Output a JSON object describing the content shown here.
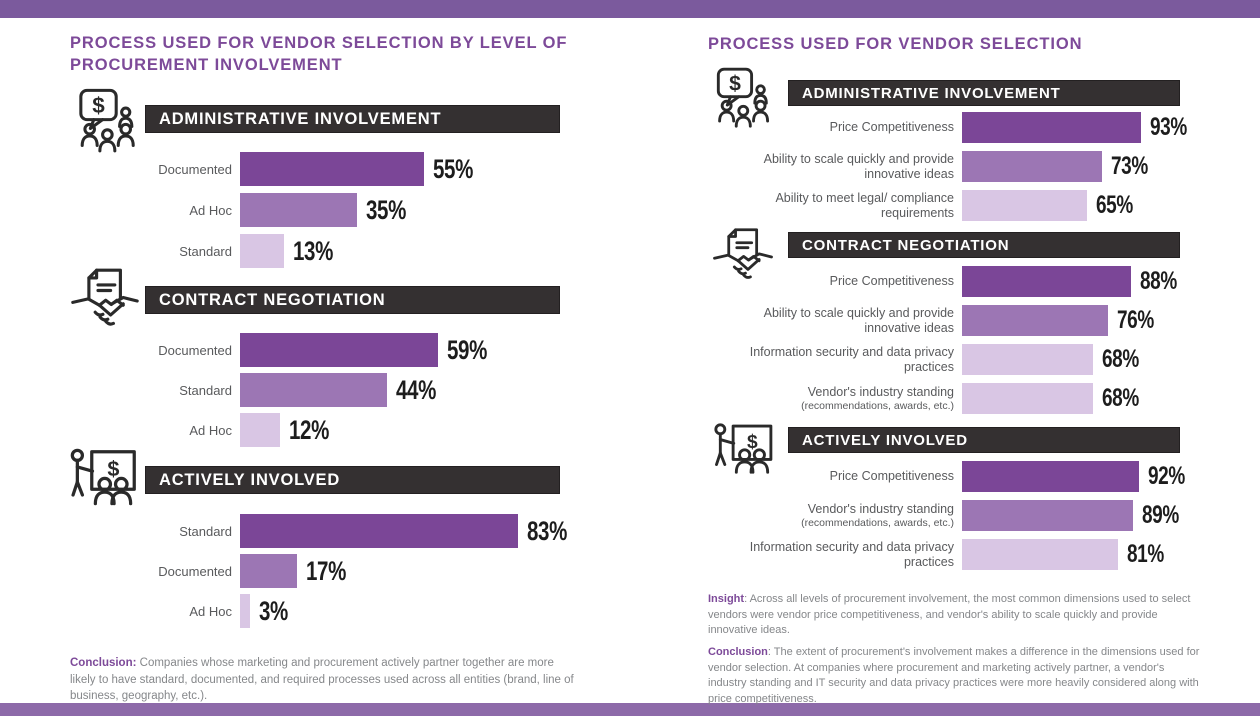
{
  "page": {
    "background": "#ffffff",
    "top_band_color": "#7b5a9d",
    "bottom_band_color": "#8d6aa9",
    "colors": {
      "title_purple": "#7d4a99",
      "section_header_bg": "#343031",
      "section_header_text": "#ffffff",
      "bar_dark": "#7b4697",
      "bar_mid": "#9c76b4",
      "bar_light": "#d9c6e4",
      "label_gray": "#595a5c",
      "body_gray": "#85878a",
      "value_black": "#1d1d1d"
    }
  },
  "left_panel": {
    "title": "PROCESS USED FOR VENDOR SELECTION BY LEVEL OF PROCUREMENT INVOLVEMENT",
    "sections": [
      {
        "header": "ADMINISTRATIVE INVOLVEMENT",
        "icon": "chat-money-people-icon",
        "rows": [
          {
            "label": "Documented",
            "value": 55,
            "display": "55%",
            "tone": "dark"
          },
          {
            "label": "Ad Hoc",
            "value": 35,
            "display": "35%",
            "tone": "mid"
          },
          {
            "label": "Standard",
            "value": 13,
            "display": "13%",
            "tone": "light"
          }
        ]
      },
      {
        "header": "CONTRACT NEGOTIATION",
        "icon": "contract-handshake-icon",
        "rows": [
          {
            "label": "Documented",
            "value": 59,
            "display": "59%",
            "tone": "dark"
          },
          {
            "label": "Standard",
            "value": 44,
            "display": "44%",
            "tone": "mid"
          },
          {
            "label": "Ad Hoc",
            "value": 12,
            "display": "12%",
            "tone": "light"
          }
        ]
      },
      {
        "header": "ACTIVELY INVOLVED",
        "icon": "presenter-board-icon",
        "rows": [
          {
            "label": "Standard",
            "value": 83,
            "display": "83%",
            "tone": "dark"
          },
          {
            "label": "Documented",
            "value": 17,
            "display": "17%",
            "tone": "mid"
          },
          {
            "label": "Ad Hoc",
            "value": 3,
            "display": "3%",
            "tone": "light"
          }
        ]
      }
    ],
    "conclusion_label": "Conclusion:",
    "conclusion_text": " Companies whose marketing and procurement actively partner together are more likely to have standard, documented, and required processes used across all entities (brand, line of business, geography, etc.)."
  },
  "right_panel": {
    "title": "PROCESS USED FOR VENDOR SELECTION",
    "sections": [
      {
        "header": "ADMINISTRATIVE INVOLVEMENT",
        "icon": "chat-money-people-icon",
        "rows": [
          {
            "label": "Price Competitiveness",
            "sublabel": "",
            "value": 93,
            "display": "93%",
            "tone": "dark"
          },
          {
            "label": "Ability to scale quickly and provide innovative ideas",
            "sublabel": "",
            "value": 73,
            "display": "73%",
            "tone": "mid"
          },
          {
            "label": "Ability to meet legal/ compliance requirements",
            "sublabel": "",
            "value": 65,
            "display": "65%",
            "tone": "light"
          }
        ]
      },
      {
        "header": "CONTRACT NEGOTIATION",
        "icon": "contract-handshake-icon",
        "rows": [
          {
            "label": "Price Competitiveness",
            "sublabel": "",
            "value": 88,
            "display": "88%",
            "tone": "dark"
          },
          {
            "label": "Ability to scale quickly and provide innovative ideas",
            "sublabel": "",
            "value": 76,
            "display": "76%",
            "tone": "mid"
          },
          {
            "label": "Information security and data privacy practices",
            "sublabel": "",
            "value": 68,
            "display": "68%",
            "tone": "light"
          },
          {
            "label": "Vendor's industry standing",
            "sublabel": "(recommendations, awards, etc.)",
            "value": 68,
            "display": "68%",
            "tone": "light"
          }
        ]
      },
      {
        "header": "ACTIVELY INVOLVED",
        "icon": "presenter-board-icon",
        "rows": [
          {
            "label": "Price Competitiveness",
            "sublabel": "",
            "value": 92,
            "display": "92%",
            "tone": "dark"
          },
          {
            "label": "Vendor's industry standing",
            "sublabel": "(recommendations, awards, etc.)",
            "value": 89,
            "display": "89%",
            "tone": "mid"
          },
          {
            "label": "Information security and data privacy practices",
            "sublabel": "",
            "value": 81,
            "display": "81%",
            "tone": "light"
          }
        ]
      }
    ],
    "insight_label": "Insight",
    "insight_text": ": Across all levels of procurement involvement, the most common dimensions used to select vendors were vendor price competitiveness, and vendor's ability to scale quickly and provide innovative ideas.",
    "conclusion_label": "Conclusion",
    "conclusion_text": ": The extent of procurement's involvement makes a difference in the dimensions used for vendor selection. At companies where procurement and marketing actively partner, a vendor's industry standing and IT security and data privacy practices were more heavily considered along with price competitiveness."
  },
  "chart_data": [
    {
      "type": "bar",
      "orientation": "horizontal",
      "title": "PROCESS USED FOR VENDOR SELECTION BY LEVEL OF PROCUREMENT INVOLVEMENT",
      "unit": "%",
      "xlim": [
        0,
        100
      ],
      "groups": [
        {
          "name": "ADMINISTRATIVE INVOLVEMENT",
          "categories": [
            "Documented",
            "Ad Hoc",
            "Standard"
          ],
          "values": [
            55,
            35,
            13
          ]
        },
        {
          "name": "CONTRACT NEGOTIATION",
          "categories": [
            "Documented",
            "Standard",
            "Ad Hoc"
          ],
          "values": [
            59,
            44,
            12
          ]
        },
        {
          "name": "ACTIVELY INVOLVED",
          "categories": [
            "Standard",
            "Documented",
            "Ad Hoc"
          ],
          "values": [
            83,
            17,
            3
          ]
        }
      ]
    },
    {
      "type": "bar",
      "orientation": "horizontal",
      "title": "PROCESS USED FOR VENDOR SELECTION",
      "unit": "%",
      "xlim": [
        0,
        100
      ],
      "groups": [
        {
          "name": "ADMINISTRATIVE INVOLVEMENT",
          "categories": [
            "Price Competitiveness",
            "Ability to scale quickly and provide innovative ideas",
            "Ability to meet legal/compliance requirements"
          ],
          "values": [
            93,
            73,
            65
          ]
        },
        {
          "name": "CONTRACT NEGOTIATION",
          "categories": [
            "Price Competitiveness",
            "Ability to scale quickly and provide innovative ideas",
            "Information security and data privacy practices",
            "Vendor's industry standing (recommendations, awards, etc.)"
          ],
          "values": [
            88,
            76,
            68,
            68
          ]
        },
        {
          "name": "ACTIVELY INVOLVED",
          "categories": [
            "Price Competitiveness",
            "Vendor's industry standing (recommendations, awards, etc.)",
            "Information security and data privacy practices"
          ],
          "values": [
            92,
            89,
            81
          ]
        }
      ]
    }
  ]
}
